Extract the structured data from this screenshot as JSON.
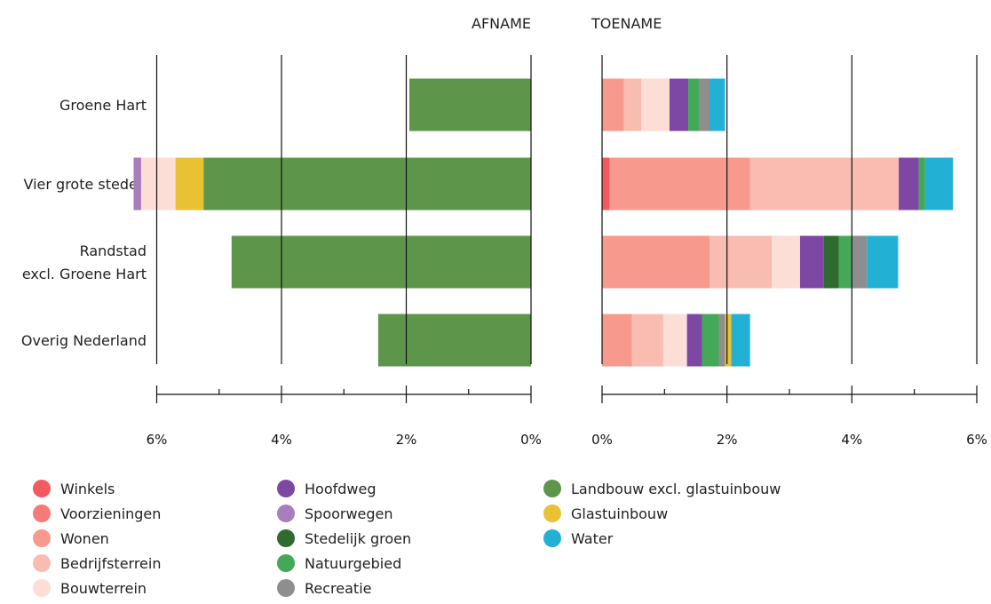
{
  "chart_data": {
    "type": "bar",
    "orientation": "horizontal-diverging",
    "panel_titles": {
      "decrease": "AFNAME",
      "increase": "TOENAME"
    },
    "categories": [
      "Groene Hart",
      "Vier grote steden",
      "Randstad excl. Groene Hart",
      "Overig Nederland"
    ],
    "category_lines": [
      [
        "Groene Hart"
      ],
      [
        "Vier grote steden"
      ],
      [
        "Randstad",
        "excl. Groene Hart"
      ],
      [
        "Overig Nederland"
      ]
    ],
    "xlim": [
      0,
      6
    ],
    "x_ticks": [
      "6%",
      "4%",
      "2%",
      "0%",
      "0%",
      "2%",
      "4%",
      "6%"
    ],
    "grid": true,
    "decrease_series": [
      {
        "name": "Landbouw excl. glastuinbouw",
        "color": "#5d964a",
        "values": [
          1.95,
          5.25,
          4.8,
          2.45
        ]
      },
      {
        "name": "Glastuinbouw",
        "color": "#e8c232",
        "values": [
          0,
          0.45,
          0,
          0
        ]
      },
      {
        "name": "Bouwterrein",
        "color": "#fcded7",
        "values": [
          0,
          0.55,
          0,
          0
        ]
      },
      {
        "name": "Spoorwegen",
        "color": "#a97dbb",
        "values": [
          0,
          0.12,
          0,
          0
        ]
      }
    ],
    "increase_series": [
      {
        "name": "Winkels",
        "color": "#f25a5f",
        "values": [
          0,
          0.12,
          0,
          0
        ]
      },
      {
        "name": "Voorzieningen",
        "color": "#f57a78",
        "values": [
          0,
          0,
          0,
          0
        ]
      },
      {
        "name": "Wonen",
        "color": "#f7998c",
        "values": [
          0.35,
          2.25,
          1.72,
          0.48
        ]
      },
      {
        "name": "Bedrijfsterrein",
        "color": "#f9bcb1",
        "values": [
          0.28,
          2.38,
          1.0,
          0.5
        ]
      },
      {
        "name": "Bouwterrein",
        "color": "#fcded7",
        "values": [
          0.45,
          0,
          0.45,
          0.38
        ]
      },
      {
        "name": "Hoofdweg",
        "color": "#7d48a4",
        "values": [
          0.3,
          0.32,
          0.38,
          0.24
        ]
      },
      {
        "name": "Stedelijk groen",
        "color": "#2f6a2f",
        "values": [
          0,
          0,
          0.24,
          0
        ]
      },
      {
        "name": "Natuurgebied",
        "color": "#43a857",
        "values": [
          0.17,
          0.1,
          0.2,
          0.27
        ]
      },
      {
        "name": "Recreatie",
        "color": "#8e8e8e",
        "values": [
          0.17,
          0,
          0.25,
          0.1
        ]
      },
      {
        "name": "Glastuinbouw",
        "color": "#e8c232",
        "values": [
          0,
          0,
          0,
          0.1
        ]
      },
      {
        "name": "Water",
        "color": "#22b0d4",
        "values": [
          0.25,
          0.45,
          0.5,
          0.3
        ]
      }
    ]
  },
  "legend": [
    [
      {
        "label": "Winkels",
        "color": "#f25a5f"
      },
      {
        "label": "Voorzieningen",
        "color": "#f57a78"
      },
      {
        "label": "Wonen",
        "color": "#f7998c"
      },
      {
        "label": "Bedrijfsterrein",
        "color": "#f9bcb1"
      },
      {
        "label": "Bouwterrein",
        "color": "#fcded7"
      }
    ],
    [
      {
        "label": "Hoofdweg",
        "color": "#7d48a4"
      },
      {
        "label": "Spoorwegen",
        "color": "#a97dbb"
      },
      {
        "label": "Stedelijk groen",
        "color": "#2f6a2f"
      },
      {
        "label": "Natuurgebied",
        "color": "#43a857"
      },
      {
        "label": "Recreatie",
        "color": "#8e8e8e"
      }
    ],
    [
      {
        "label": "Landbouw excl. glastuinbouw",
        "color": "#5d964a"
      },
      {
        "label": "Glastuinbouw",
        "color": "#e8c232"
      },
      {
        "label": "Water",
        "color": "#22b0d4"
      }
    ]
  ]
}
